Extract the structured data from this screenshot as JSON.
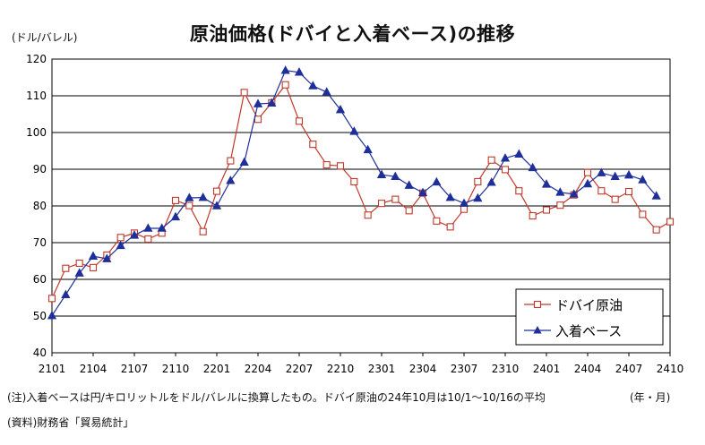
{
  "chart_data": {
    "type": "line",
    "title": "原油価格(ドバイと入着ベース)の推移",
    "ylabel": "(ドル/バレル)",
    "xlabel": "(年・月)",
    "ylim": [
      40,
      120
    ],
    "yticks": [
      40,
      50,
      60,
      70,
      80,
      90,
      100,
      110,
      120
    ],
    "x_count": 46,
    "xtick_labels": [
      "2101",
      "2104",
      "2107",
      "2110",
      "2201",
      "2204",
      "2207",
      "2210",
      "2301",
      "2304",
      "2307",
      "2310",
      "2401",
      "2404",
      "2407",
      "2410"
    ],
    "grid": true,
    "legend_position": "bottom-right",
    "series": [
      {
        "name": "ドバイ原油",
        "color": "#c0392b",
        "marker": "square",
        "values": [
          54.8,
          63.0,
          64.4,
          63.2,
          66.6,
          71.4,
          72.6,
          71.0,
          72.6,
          81.5,
          80.1,
          73.0,
          84.0,
          92.3,
          110.9,
          103.6,
          108.1,
          113.0,
          103.1,
          96.8,
          91.2,
          90.9,
          86.6,
          77.5,
          80.7,
          81.8,
          78.7,
          83.5,
          75.9,
          74.3,
          79.1,
          86.6,
          92.5,
          89.9,
          84.1,
          77.3,
          78.9,
          80.2,
          83.0,
          89.1,
          84.1,
          81.8,
          83.9,
          77.7,
          73.5,
          75.7
        ]
      },
      {
        "name": "入着ベース",
        "color": "#1f2f9a",
        "marker": "triangle",
        "values": [
          50.1,
          55.8,
          61.7,
          66.3,
          65.6,
          69.2,
          72.0,
          73.9,
          73.9,
          77.0,
          82.2,
          82.3,
          80.0,
          86.9,
          91.9,
          107.8,
          108.0,
          116.9,
          116.4,
          112.7,
          111.0,
          106.2,
          100.3,
          95.3,
          88.5,
          88.0,
          85.6,
          83.6,
          86.5,
          82.3,
          80.7,
          82.1,
          86.4,
          93.0,
          94.1,
          90.4,
          85.9,
          83.7,
          83.2,
          86.0,
          89.0,
          88.0,
          88.4,
          87.1,
          82.7
        ]
      }
    ]
  },
  "note": "(注)入着ベースは円/キロリットルをドル/バレルに換算したもの。ドバイ原油の24年10月は10/1～10/16の平均",
  "source": "(資料)財務省「貿易統計」"
}
